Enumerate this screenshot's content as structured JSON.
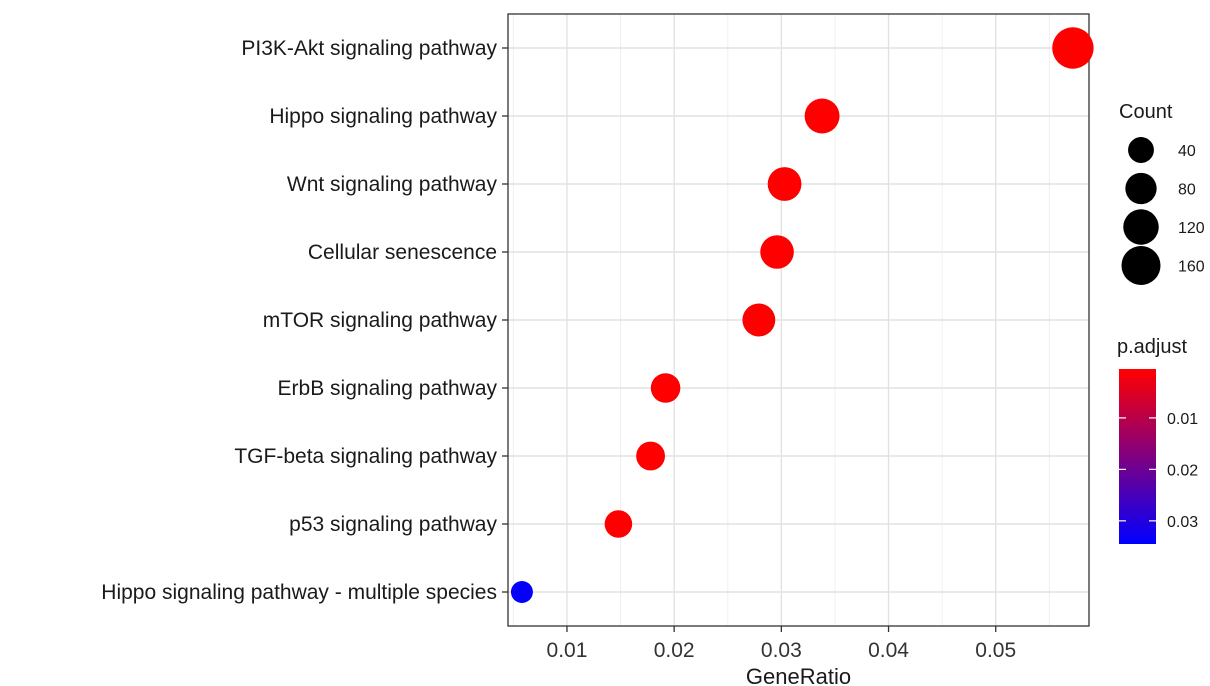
{
  "chart_data": {
    "type": "scatter",
    "title": "",
    "xlabel": "GeneRatio",
    "ylabel": "",
    "xlim": [
      0.0045,
      0.0587
    ],
    "xticks": [
      0.01,
      0.02,
      0.03,
      0.04,
      0.05
    ],
    "xtick_labels": [
      "0.01",
      "0.02",
      "0.03",
      "0.04",
      "0.05"
    ],
    "grid": true,
    "legend_position": "right",
    "categories": [
      "PI3K-Akt signaling pathway",
      "Hippo signaling pathway",
      "Wnt signaling pathway",
      "Cellular senescence",
      "mTOR signaling pathway",
      "ErbB signaling pathway",
      "TGF-beta signaling pathway",
      "p53 signaling pathway",
      "Hippo signaling pathway - multiple species"
    ],
    "points": [
      {
        "term": "PI3K-Akt signaling pathway",
        "gene_ratio": 0.0572,
        "count": 180,
        "p_adjust": 0.0005
      },
      {
        "term": "Hippo signaling pathway",
        "gene_ratio": 0.0338,
        "count": 107,
        "p_adjust": 0.0005
      },
      {
        "term": "Wnt signaling pathway",
        "gene_ratio": 0.0303,
        "count": 96,
        "p_adjust": 0.0005
      },
      {
        "term": "Cellular senescence",
        "gene_ratio": 0.0296,
        "count": 94,
        "p_adjust": 0.0005
      },
      {
        "term": "mTOR signaling pathway",
        "gene_ratio": 0.0279,
        "count": 88,
        "p_adjust": 0.0005
      },
      {
        "term": "ErbB signaling pathway",
        "gene_ratio": 0.0192,
        "count": 61,
        "p_adjust": 0.0005
      },
      {
        "term": "TGF-beta signaling pathway",
        "gene_ratio": 0.0178,
        "count": 56,
        "p_adjust": 0.0005
      },
      {
        "term": "p53 signaling pathway",
        "gene_ratio": 0.0148,
        "count": 47,
        "p_adjust": 0.0005
      },
      {
        "term": "Hippo signaling pathway - multiple species",
        "gene_ratio": 0.0058,
        "count": 18,
        "p_adjust": 0.034
      }
    ],
    "size_legend": {
      "title": "Count",
      "values": [
        40,
        80,
        120,
        160
      ],
      "labels": [
        "40",
        "80",
        "120",
        "160"
      ]
    },
    "color_legend": {
      "title": "p.adjust",
      "range": [
        0.0005,
        0.0345
      ],
      "ticks": [
        0.01,
        0.02,
        0.03
      ],
      "tick_labels": [
        "0.01",
        "0.02",
        "0.03"
      ],
      "low_color": "#ff0000",
      "high_color": "#0000ff"
    }
  }
}
